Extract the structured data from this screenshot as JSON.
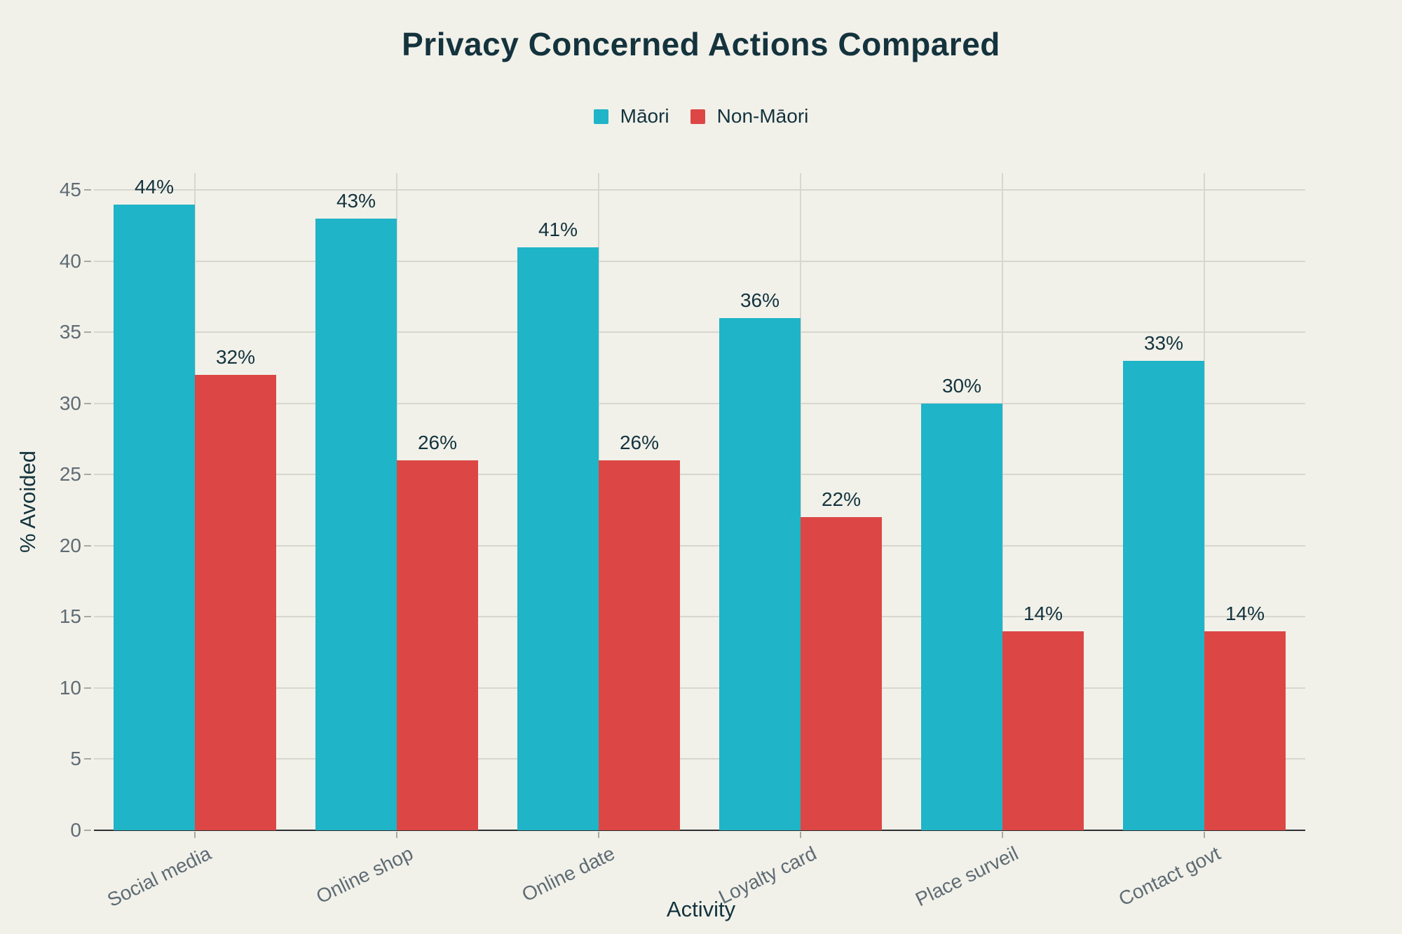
{
  "chart_data": {
    "type": "bar",
    "title": "Privacy Concerned Actions Compared",
    "categories": [
      "Social media",
      "Online shop",
      "Online date",
      "Loyalty card",
      "Place surveil",
      "Contact govt"
    ],
    "series": [
      {
        "name": "Māori",
        "color": "#1fb4c7",
        "values": [
          44,
          43,
          41,
          36,
          30,
          33
        ]
      },
      {
        "name": "Non-Māori",
        "color": "#dc4745",
        "values": [
          32,
          26,
          26,
          22,
          14,
          14
        ]
      }
    ],
    "xlabel": "Activity",
    "ylabel": "% Avoided",
    "ylim": [
      0,
      46.2
    ],
    "yticks": [
      0,
      5,
      10,
      15,
      20,
      25,
      30,
      35,
      40,
      45
    ],
    "value_suffix": "%",
    "grid": true,
    "legend_position": "top-center"
  },
  "colors": {
    "background": "#f1f1ea",
    "title_text": "#14333d",
    "axis_title_text": "#14333d",
    "bar_label_text": "#14333d",
    "tick_text": "#5f6b73",
    "gridline": "#d7d6cf",
    "axis_line": "#2b2f31",
    "tick_mark": "#a9a9a2"
  }
}
